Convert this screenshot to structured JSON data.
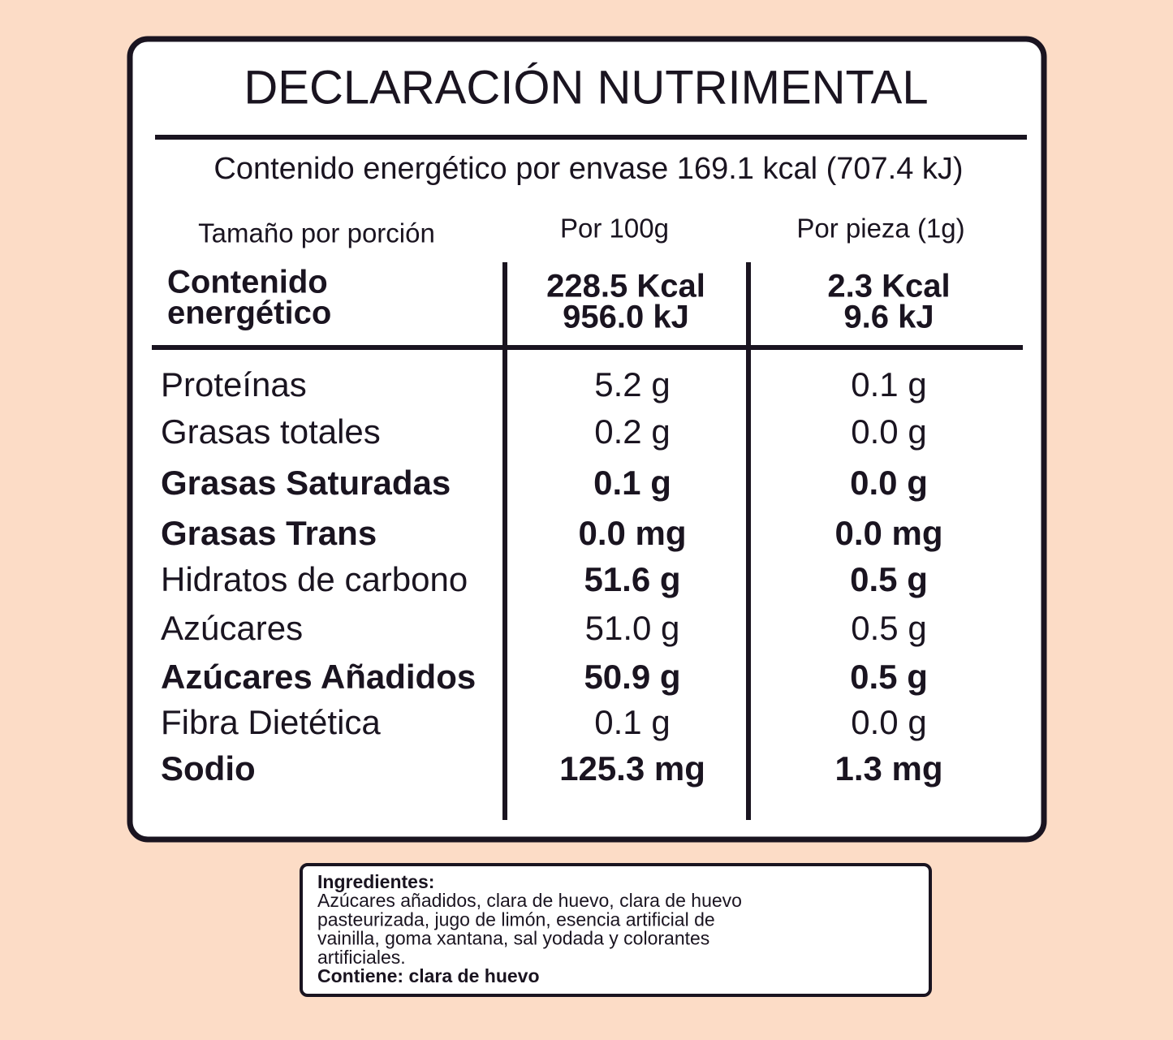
{
  "label": {
    "title": "DECLARACIÓN NUTRIMENTAL",
    "energy_per_package": "Contenido energético por envase 169.1 kcal (707.4 kJ)",
    "header": {
      "serving": "Tamaño por porción",
      "col1": "Por 100g",
      "col2": "Por pieza (1g)"
    },
    "energy_row": {
      "label_lines": [
        "Contenido",
        "energético"
      ],
      "col1_lines": [
        "228.5 Kcal",
        "956.0 kJ"
      ],
      "col2_lines": [
        "2.3 Kcal",
        "9.6 kJ"
      ]
    },
    "rows": [
      {
        "nutrient": "Proteínas",
        "per_100g": "5.2 g",
        "per_piece": "0.1 g",
        "label_bold": false,
        "values_bold": false
      },
      {
        "nutrient": "Grasas totales",
        "per_100g": "0.2 g",
        "per_piece": "0.0 g",
        "label_bold": false,
        "values_bold": false
      },
      {
        "nutrient": "Grasas Saturadas",
        "per_100g": "0.1 g",
        "per_piece": "0.0 g",
        "label_bold": true,
        "values_bold": true
      },
      {
        "nutrient": "Grasas Trans",
        "per_100g": "0.0 mg",
        "per_piece": "0.0 mg",
        "label_bold": true,
        "values_bold": true
      },
      {
        "nutrient": "Hidratos de carbono",
        "per_100g": "51.6 g",
        "per_piece": "0.5 g",
        "label_bold": false,
        "values_bold": true
      },
      {
        "nutrient": "Azúcares",
        "per_100g": "51.0 g",
        "per_piece": "0.5 g",
        "label_bold": false,
        "values_bold": false
      },
      {
        "nutrient": "Azúcares Añadidos",
        "per_100g": "50.9 g",
        "per_piece": "0.5 g",
        "label_bold": true,
        "values_bold": true
      },
      {
        "nutrient": "Fibra Dietética",
        "per_100g": "0.1 g",
        "per_piece": "0.0 g",
        "label_bold": false,
        "values_bold": false
      },
      {
        "nutrient": "Sodio",
        "per_100g": "125.3 mg",
        "per_piece": "1.3 mg",
        "label_bold": true,
        "values_bold": true
      }
    ]
  },
  "ingredients": {
    "heading": "Ingredientes:",
    "text_lines": [
      "Azúcares añadidos, clara de huevo, clara de huevo",
      "pasteurizada, jugo de limón, esencia artificial de",
      "vainilla, goma xantana, sal yodada y colorantes",
      "artificiales."
    ],
    "contains": "Contiene: clara de huevo"
  }
}
